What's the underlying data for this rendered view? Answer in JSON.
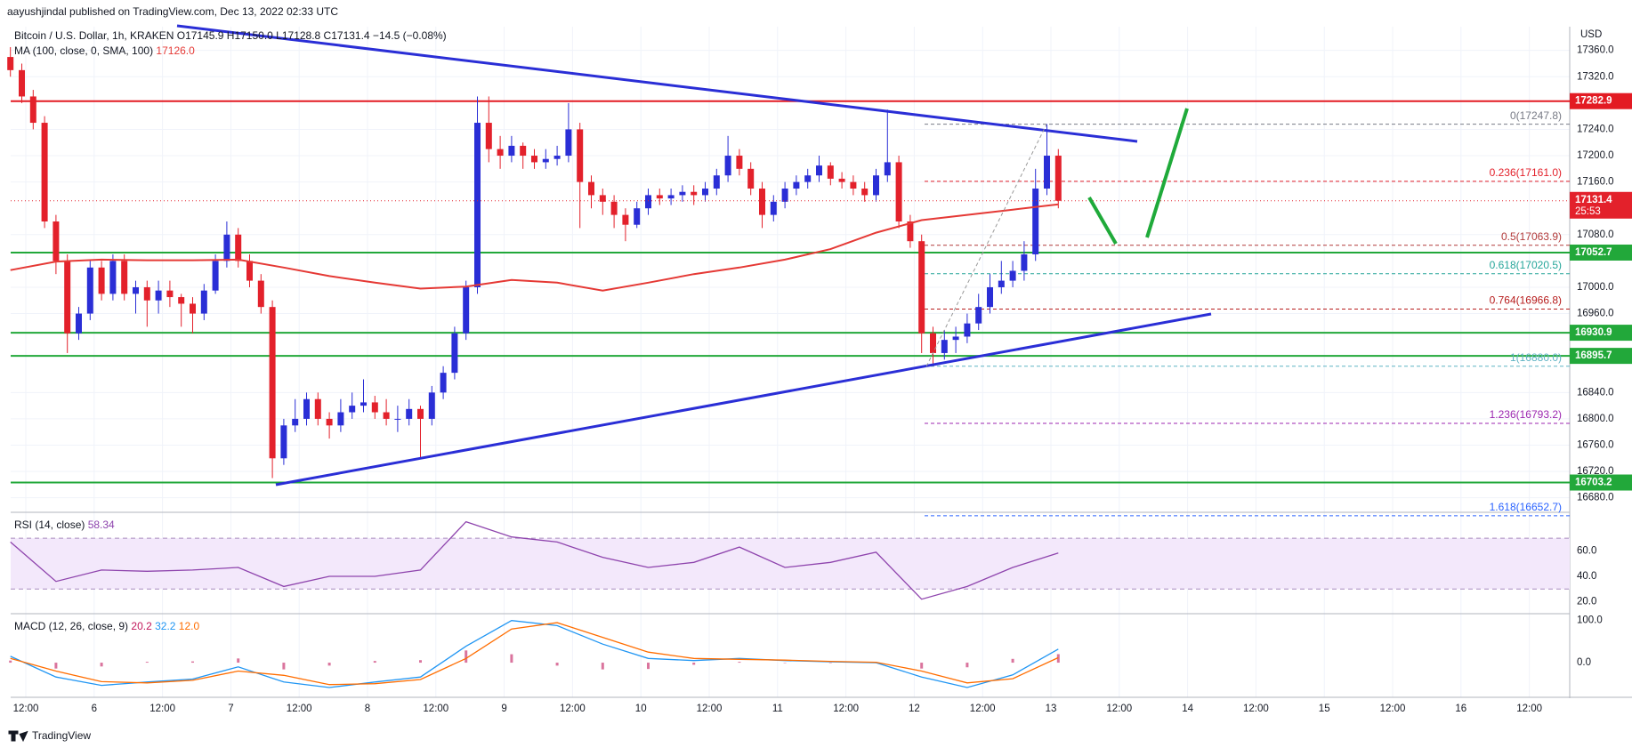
{
  "header": {
    "published": "aayushjindal published on TradingView.com, Dec 13, 2022 02:33 UTC",
    "symbol": "Bitcoin / U.S. Dollar, 1h, KRAKEN",
    "ohlc": "O17145.9 H17150.0 L17128.8 C17131.4 −14.5 (−0.08%)",
    "currency": "USD",
    "footer": "TradingView"
  },
  "chart_data": {
    "type": "candlestick",
    "ylim": [
      16662,
      17392
    ],
    "yticks": [
      {
        "value": 17360,
        "label": "17360.0"
      },
      {
        "value": 17320,
        "label": "17320.0"
      },
      {
        "value": 17240,
        "label": "17240.0"
      },
      {
        "value": 17200,
        "label": "17200.0"
      },
      {
        "value": 17160,
        "label": "17160.0"
      },
      {
        "value": 17080,
        "label": "17080.0"
      },
      {
        "value": 17000,
        "label": "17000.0"
      },
      {
        "value": 16960,
        "label": "16960.0"
      },
      {
        "value": 16840,
        "label": "16840.0"
      },
      {
        "value": 16800,
        "label": "16800.0"
      },
      {
        "value": 16760,
        "label": "16760.0"
      },
      {
        "value": 16720,
        "label": "16720.0"
      },
      {
        "value": 16680,
        "label": "16680.0"
      }
    ],
    "x_labels": [
      "12:00",
      "6",
      "12:00",
      "7",
      "12:00",
      "8",
      "12:00",
      "9",
      "12:00",
      "10",
      "12:00",
      "11",
      "12:00",
      "12",
      "12:00",
      "13",
      "12:00",
      "14",
      "12:00",
      "15",
      "12:00",
      "16",
      "12:00"
    ],
    "up_color": "#2a2ed6",
    "down_color": "#e3212b",
    "grid": true,
    "candles": [
      [
        17350,
        17365,
        17320,
        17330
      ],
      [
        17330,
        17340,
        17280,
        17290
      ],
      [
        17290,
        17300,
        17240,
        17250
      ],
      [
        17250,
        17260,
        17090,
        17100
      ],
      [
        17100,
        17110,
        17020,
        17040
      ],
      [
        17040,
        17050,
        16900,
        16930
      ],
      [
        16930,
        16970,
        16920,
        16960
      ],
      [
        16960,
        17040,
        16950,
        17030
      ],
      [
        17030,
        17040,
        16980,
        16990
      ],
      [
        16990,
        17050,
        16980,
        17040
      ],
      [
        17040,
        17050,
        16980,
        16990
      ],
      [
        16990,
        17010,
        16960,
        17000
      ],
      [
        17000,
        17010,
        16940,
        16980
      ],
      [
        16980,
        17010,
        16960,
        16995
      ],
      [
        16995,
        17010,
        16970,
        16985
      ],
      [
        16985,
        16990,
        16940,
        16975
      ],
      [
        16975,
        16985,
        16930,
        16960
      ],
      [
        16960,
        17005,
        16950,
        16995
      ],
      [
        16995,
        17050,
        16990,
        17040
      ],
      [
        17040,
        17100,
        17030,
        17080
      ],
      [
        17080,
        17090,
        17030,
        17040
      ],
      [
        17040,
        17050,
        17000,
        17010
      ],
      [
        17010,
        17020,
        16960,
        16970
      ],
      [
        16970,
        16980,
        16710,
        16740
      ],
      [
        16740,
        16800,
        16730,
        16790
      ],
      [
        16790,
        16830,
        16780,
        16800
      ],
      [
        16800,
        16840,
        16790,
        16830
      ],
      [
        16830,
        16840,
        16790,
        16800
      ],
      [
        16800,
        16810,
        16770,
        16790
      ],
      [
        16790,
        16830,
        16780,
        16810
      ],
      [
        16810,
        16840,
        16800,
        16820
      ],
      [
        16820,
        16860,
        16810,
        16825
      ],
      [
        16825,
        16835,
        16800,
        16810
      ],
      [
        16810,
        16830,
        16790,
        16800
      ],
      [
        16800,
        16820,
        16780,
        16800
      ],
      [
        16800,
        16830,
        16790,
        16815
      ],
      [
        16815,
        16820,
        16740,
        16800
      ],
      [
        16800,
        16850,
        16790,
        16840
      ],
      [
        16840,
        16880,
        16830,
        16870
      ],
      [
        16870,
        16940,
        16860,
        16930
      ],
      [
        16930,
        17010,
        16920,
        17000
      ],
      [
        17000,
        17290,
        16990,
        17250
      ],
      [
        17250,
        17290,
        17190,
        17210
      ],
      [
        17210,
        17230,
        17180,
        17200
      ],
      [
        17200,
        17230,
        17190,
        17215
      ],
      [
        17215,
        17220,
        17180,
        17200
      ],
      [
        17200,
        17210,
        17180,
        17190
      ],
      [
        17190,
        17210,
        17180,
        17195
      ],
      [
        17195,
        17215,
        17185,
        17200
      ],
      [
        17200,
        17280,
        17190,
        17240
      ],
      [
        17240,
        17250,
        17090,
        17160
      ],
      [
        17160,
        17170,
        17120,
        17140
      ],
      [
        17140,
        17150,
        17110,
        17130
      ],
      [
        17130,
        17140,
        17090,
        17110
      ],
      [
        17110,
        17120,
        17070,
        17095
      ],
      [
        17095,
        17130,
        17090,
        17120
      ],
      [
        17120,
        17150,
        17110,
        17140
      ],
      [
        17140,
        17150,
        17125,
        17135
      ],
      [
        17135,
        17150,
        17125,
        17140
      ],
      [
        17140,
        17155,
        17130,
        17145
      ],
      [
        17145,
        17155,
        17125,
        17140
      ],
      [
        17140,
        17160,
        17130,
        17150
      ],
      [
        17150,
        17180,
        17140,
        17170
      ],
      [
        17170,
        17230,
        17160,
        17200
      ],
      [
        17200,
        17210,
        17170,
        17180
      ],
      [
        17180,
        17190,
        17140,
        17150
      ],
      [
        17150,
        17160,
        17090,
        17110
      ],
      [
        17110,
        17140,
        17100,
        17130
      ],
      [
        17130,
        17160,
        17120,
        17150
      ],
      [
        17150,
        17170,
        17140,
        17160
      ],
      [
        17160,
        17180,
        17150,
        17170
      ],
      [
        17170,
        17200,
        17160,
        17185
      ],
      [
        17185,
        17190,
        17155,
        17165
      ],
      [
        17165,
        17175,
        17150,
        17160
      ],
      [
        17160,
        17170,
        17140,
        17150
      ],
      [
        17150,
        17160,
        17130,
        17140
      ],
      [
        17140,
        17180,
        17130,
        17170
      ],
      [
        17170,
        17270,
        17160,
        17190
      ],
      [
        17190,
        17200,
        17090,
        17100
      ],
      [
        17100,
        17110,
        17060,
        17070
      ],
      [
        17070,
        17080,
        16900,
        16930
      ],
      [
        16930,
        16940,
        16880,
        16900
      ],
      [
        16900,
        16935,
        16890,
        16920
      ],
      [
        16920,
        16940,
        16900,
        16925
      ],
      [
        16925,
        16960,
        16915,
        16945
      ],
      [
        16945,
        16990,
        16935,
        16970
      ],
      [
        16970,
        17020,
        16960,
        17000
      ],
      [
        17000,
        17040,
        16990,
        17010
      ],
      [
        17010,
        17040,
        17000,
        17025
      ],
      [
        17025,
        17070,
        17010,
        17050
      ],
      [
        17050,
        17180,
        17040,
        17150
      ],
      [
        17150,
        17248,
        17140,
        17200
      ],
      [
        17200,
        17210,
        17120,
        17131.4
      ]
    ],
    "ma": {
      "name": "MA (100, close, 0, SMA, 100)",
      "color": "#e53935",
      "last_label": "17126.0",
      "values": [
        17026,
        17039,
        17042,
        17041,
        17041,
        17042,
        17030,
        17017,
        17007,
        16998,
        17001,
        17011,
        17007,
        16995,
        17007,
        17020,
        17030,
        17042,
        17058,
        17083,
        17102,
        17110,
        17118,
        17126
      ]
    },
    "last_price": 17131.4,
    "countdown": "25:53",
    "levels": {
      "values": [
        17282.9,
        17052.7,
        16930.9,
        16895.7,
        16703.2
      ],
      "colors": [
        "#e31b23",
        "#22a83a",
        "#22a83a",
        "#22a83a",
        "#22a83a"
      ]
    },
    "fib_levels": [
      {
        "value": 17247.8,
        "label": "0(17247.8)",
        "color": "#787b86"
      },
      {
        "value": 17161.0,
        "label": "0.236(17161.0)",
        "color": "#e3212b"
      },
      {
        "value": 17063.9,
        "label": "0.5(17063.9)",
        "color": "#b23a3a"
      },
      {
        "value": 17020.5,
        "label": "0.618(17020.5)",
        "color": "#26a69a"
      },
      {
        "value": 16966.8,
        "label": "0.764(16966.8)",
        "color": "#b71c1c"
      },
      {
        "value": 16880.0,
        "label": "1(16880.0)",
        "color": "#5fb3c4"
      },
      {
        "value": 16793.2,
        "label": "1.236(16793.2)",
        "color": "#9c27b0"
      },
      {
        "value": 16652.7,
        "label": "1.618(16652.7)",
        "color": "#2962ff"
      }
    ],
    "rsi": {
      "name": "RSI (14, close)",
      "color": "#8e44ad",
      "ylim": [
        12,
        89
      ],
      "band": [
        30,
        70
      ],
      "yticks": [
        {
          "value": 20,
          "label": "20.0"
        },
        {
          "value": 40,
          "label": "40.0"
        },
        {
          "value": 60,
          "label": "60.0"
        }
      ],
      "values": [
        67,
        36,
        45,
        44,
        45,
        47,
        32,
        40,
        40,
        45,
        83,
        71,
        67,
        55,
        47,
        51,
        63,
        47,
        51,
        59,
        22,
        32,
        47,
        58.34
      ]
    },
    "macd": {
      "name": "MACD (12, 26, close, 9)",
      "ylim": [
        -78,
        112
      ],
      "yticks": [
        {
          "value": 0,
          "label": "0.0"
        },
        {
          "value": 100,
          "label": "100.0"
        }
      ],
      "histogram": {
        "color": "#c2185b",
        "values": [
          5,
          -14,
          -9,
          2,
          3,
          10,
          -16,
          -7,
          4,
          6,
          29,
          20,
          -7,
          -16,
          -15,
          -5,
          2,
          -1,
          -1,
          -1,
          -14,
          -11,
          9,
          20.2
        ]
      },
      "macd_line": {
        "color": "#2196f3",
        "values": [
          15,
          -34,
          -54,
          -46,
          -39,
          -10,
          -46,
          -59,
          -46,
          -34,
          39,
          100,
          88,
          44,
          10,
          5,
          10,
          5,
          2,
          0,
          -34,
          -59,
          -29,
          32.2
        ]
      },
      "signal": {
        "color": "#ff6d00",
        "last_label": "12.0",
        "values": [
          10,
          -20,
          -45,
          -48,
          -42,
          -20,
          -30,
          -52,
          -50,
          -40,
          10,
          80,
          95,
          60,
          25,
          10,
          8,
          6,
          3,
          1,
          -20,
          -48,
          -38,
          12.0
        ]
      }
    }
  }
}
